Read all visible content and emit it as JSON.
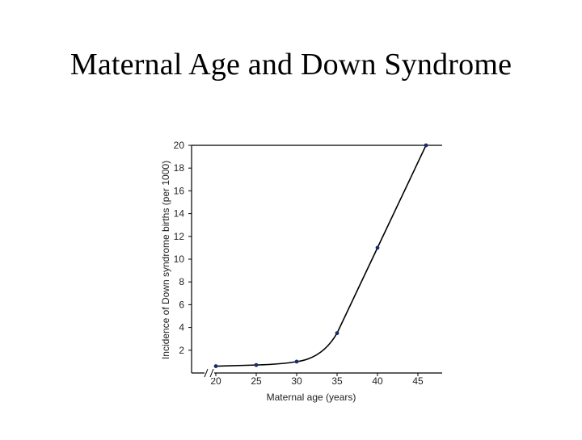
{
  "slide": {
    "title": "Maternal Age and Down Syndrome"
  },
  "chart_data": {
    "type": "line",
    "title": "",
    "xlabel": "Maternal age (years)",
    "ylabel": "Incidence of Down syndrome births (per 1000)",
    "x": [
      20,
      25,
      30,
      35,
      40,
      46
    ],
    "series": [
      {
        "values": [
          0.6,
          0.7,
          1.0,
          3.5,
          11.0,
          20.0
        ]
      }
    ],
    "xticks": [
      20,
      25,
      30,
      35,
      40,
      45
    ],
    "yticks": [
      2,
      4,
      6,
      8,
      10,
      12,
      14,
      16,
      18,
      20
    ],
    "xlim": [
      17,
      48
    ],
    "ylim": [
      0,
      20
    ],
    "grid": false,
    "axis_break": "x",
    "line_color": "#000000",
    "marker_color": "#1a2a6e"
  }
}
